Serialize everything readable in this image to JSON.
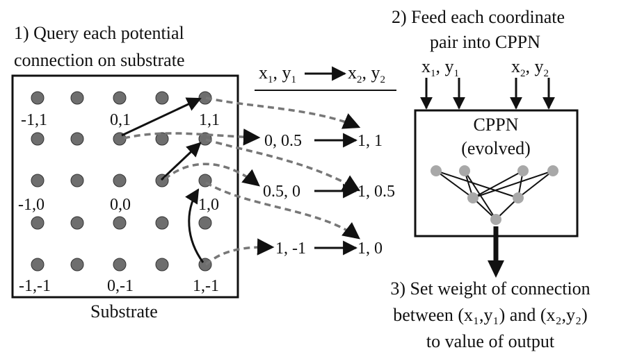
{
  "steps": {
    "step1_line1": "1) Query each potential",
    "step1_line2": "connection on substrate",
    "step2_line1": "2) Feed each coordinate",
    "step2_line2": "pair into CPPN",
    "step3_line1": "3) Set weight of connection",
    "step3_line2": "between (x₁,y₁) and (x₂,y₂)",
    "step3_line3": "to value of output"
  },
  "substrate": {
    "caption": "Substrate",
    "labels": [
      "-1,1",
      "0,1",
      "1,1",
      "-1,0",
      "0,0",
      "1,0",
      "-1,-1",
      "0,-1",
      "1,-1"
    ]
  },
  "header_mapping": {
    "x": "x",
    "y": "y",
    "sub1": "1",
    "sub2": "2"
  },
  "cppn": {
    "title": "CPPN",
    "subtitle": "(evolved)",
    "inputs": [
      "x",
      "y",
      "x",
      "y"
    ],
    "input_subs": [
      "1",
      "1",
      "2",
      "2"
    ]
  },
  "queries": [
    {
      "from": "0, 0.5",
      "to": "1, 1"
    },
    {
      "from": "0.5, 0",
      "to": "1, 0.5"
    },
    {
      "from": "1, -1",
      "to": "1, 0"
    }
  ],
  "colors": {
    "node_fill": "#6e6e6e",
    "cppn_node": "#a8a8a8",
    "dashed": "#777777",
    "stroke": "#111111"
  }
}
